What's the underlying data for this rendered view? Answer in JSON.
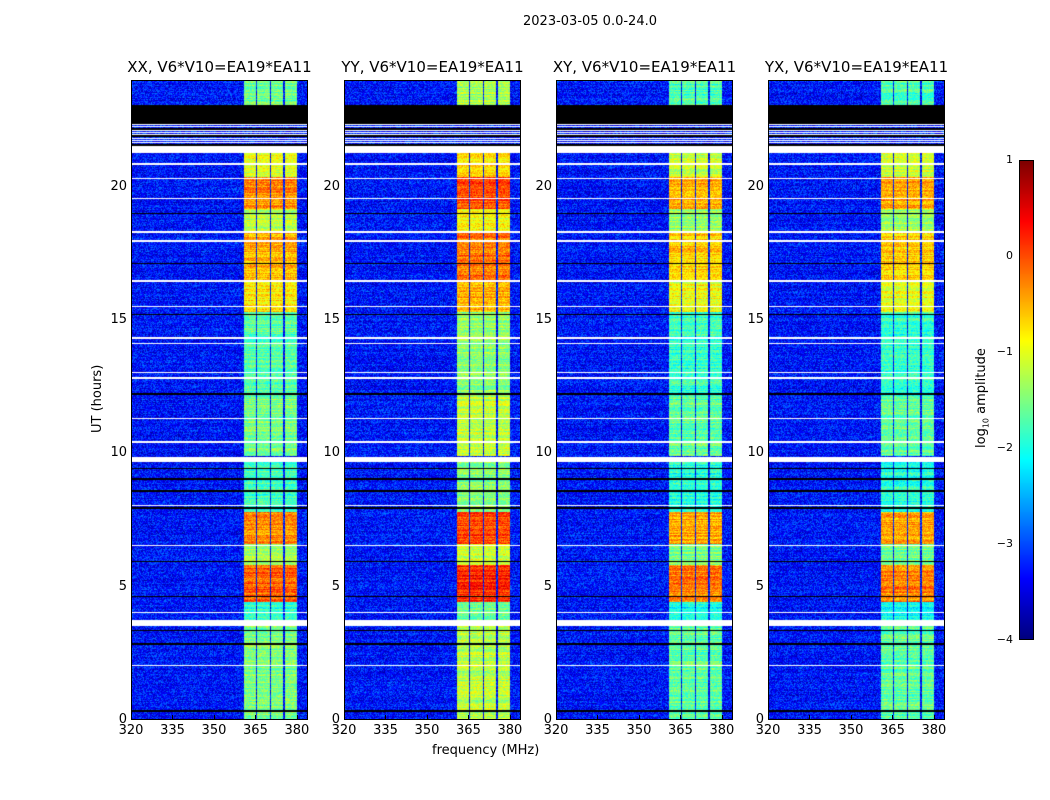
{
  "chart_data": {
    "type": "heatmap",
    "title": "2023-03-05 0.0-24.0",
    "xlabel": "frequency (MHz)",
    "ylabel": "UT (hours)",
    "xlim": [
      320,
      384
    ],
    "ylim": [
      0,
      24
    ],
    "xticks": [
      "320",
      "335",
      "350",
      "365",
      "380"
    ],
    "yticks": [
      "0",
      "5",
      "10",
      "15",
      "20"
    ],
    "colorbar": {
      "label": "log10 amplitude",
      "label_main": "log",
      "label_sub": "10",
      "label_rest": " amplitude",
      "range": [
        -4,
        1
      ],
      "ticks": [
        "1",
        "0",
        "−1",
        "−2",
        "−3",
        "−4"
      ],
      "colormap": "jet"
    },
    "panels": [
      {
        "title": "XX, V6*V10=EA19*EA11",
        "level_offset": 0.0
      },
      {
        "title": "YY, V6*V10=EA19*EA11",
        "level_offset": 0.3
      },
      {
        "title": "XY, V6*V10=EA19*EA11",
        "level_offset": -0.15
      },
      {
        "title": "YX, V6*V10=EA19*EA11",
        "level_offset": -0.15
      }
    ],
    "background_level": -3.3,
    "bands_mhz": [
      [
        360.8,
        365.2
      ],
      [
        365.8,
        370.3
      ],
      [
        370.9,
        375.4
      ],
      [
        376.0,
        380.4
      ]
    ],
    "band_levels": [
      {
        "from": 0,
        "to": 3.5,
        "level": -1.5
      },
      {
        "from": 3.5,
        "to": 4.4,
        "level": -1.9
      },
      {
        "from": 4.4,
        "to": 5.8,
        "level": -0.1
      },
      {
        "from": 5.8,
        "to": 6.6,
        "level": -1.4
      },
      {
        "from": 6.6,
        "to": 7.8,
        "level": -0.3
      },
      {
        "from": 7.8,
        "to": 9.7,
        "level": -1.8
      },
      {
        "from": 9.9,
        "to": 12.1,
        "level": -1.5
      },
      {
        "from": 12.1,
        "to": 15.3,
        "level": -1.7
      },
      {
        "from": 15.3,
        "to": 16.5,
        "level": -0.8
      },
      {
        "from": 16.5,
        "to": 18.3,
        "level": -0.5
      },
      {
        "from": 18.3,
        "to": 19.2,
        "level": -1.2
      },
      {
        "from": 19.2,
        "to": 20.4,
        "level": -0.3
      },
      {
        "from": 20.4,
        "to": 21.3,
        "level": -1.0
      },
      {
        "from": 23.0,
        "to": 24.0,
        "level": -1.6
      }
    ],
    "flagged_white_hours": [
      [
        3.5,
        3.72
      ],
      [
        9.65,
        9.85
      ],
      [
        21.3,
        21.5
      ],
      [
        12.8,
        12.86
      ],
      [
        13.0,
        13.06
      ],
      [
        14.1,
        14.15
      ],
      [
        14.3,
        14.36
      ],
      [
        16.45,
        16.5
      ],
      [
        17.95,
        18.0
      ],
      [
        18.3,
        18.35
      ],
      [
        20.3,
        20.35
      ],
      [
        20.85,
        20.9
      ],
      [
        2.0,
        2.05
      ],
      [
        4.0,
        4.04
      ],
      [
        6.5,
        6.55
      ],
      [
        8.0,
        8.05
      ],
      [
        10.4,
        10.44
      ],
      [
        11.3,
        11.34
      ],
      [
        15.5,
        15.54
      ],
      [
        19.55,
        19.6
      ],
      [
        21.8,
        21.85
      ],
      [
        22.05,
        22.1
      ]
    ],
    "flagged_black_hours": [
      [
        22.4,
        23.1
      ],
      [
        21.55,
        21.62
      ],
      [
        21.9,
        21.96
      ],
      [
        22.15,
        22.22
      ],
      [
        0.28,
        0.33
      ],
      [
        2.8,
        2.85
      ],
      [
        3.3,
        3.35
      ],
      [
        4.6,
        4.64
      ],
      [
        5.9,
        5.95
      ],
      [
        7.9,
        7.96
      ],
      [
        8.55,
        8.6
      ],
      [
        9.0,
        9.05
      ],
      [
        9.4,
        9.45
      ],
      [
        12.2,
        12.25
      ],
      [
        15.2,
        15.25
      ],
      [
        17.1,
        17.14
      ],
      [
        19.0,
        19.04
      ]
    ]
  }
}
